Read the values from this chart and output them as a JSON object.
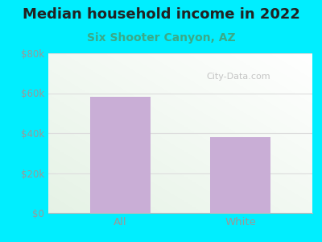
{
  "title": "Median household income in 2022",
  "subtitle": "Six Shooter Canyon, AZ",
  "categories": [
    "All",
    "White"
  ],
  "values": [
    58000,
    38000
  ],
  "bar_color": "#c9aed6",
  "ylim": [
    0,
    80000
  ],
  "yticks": [
    0,
    20000,
    40000,
    60000,
    80000
  ],
  "ytick_labels": [
    "$0",
    "$20k",
    "$40k",
    "$60k",
    "$80k"
  ],
  "title_fontsize": 13,
  "title_color": "#222222",
  "subtitle_fontsize": 10,
  "subtitle_color": "#3aaa88",
  "tick_color": "#999999",
  "bg_cyan": "#00eeff",
  "watermark": "City-Data.com",
  "bar_width": 0.5,
  "grid_color": "#dddddd"
}
